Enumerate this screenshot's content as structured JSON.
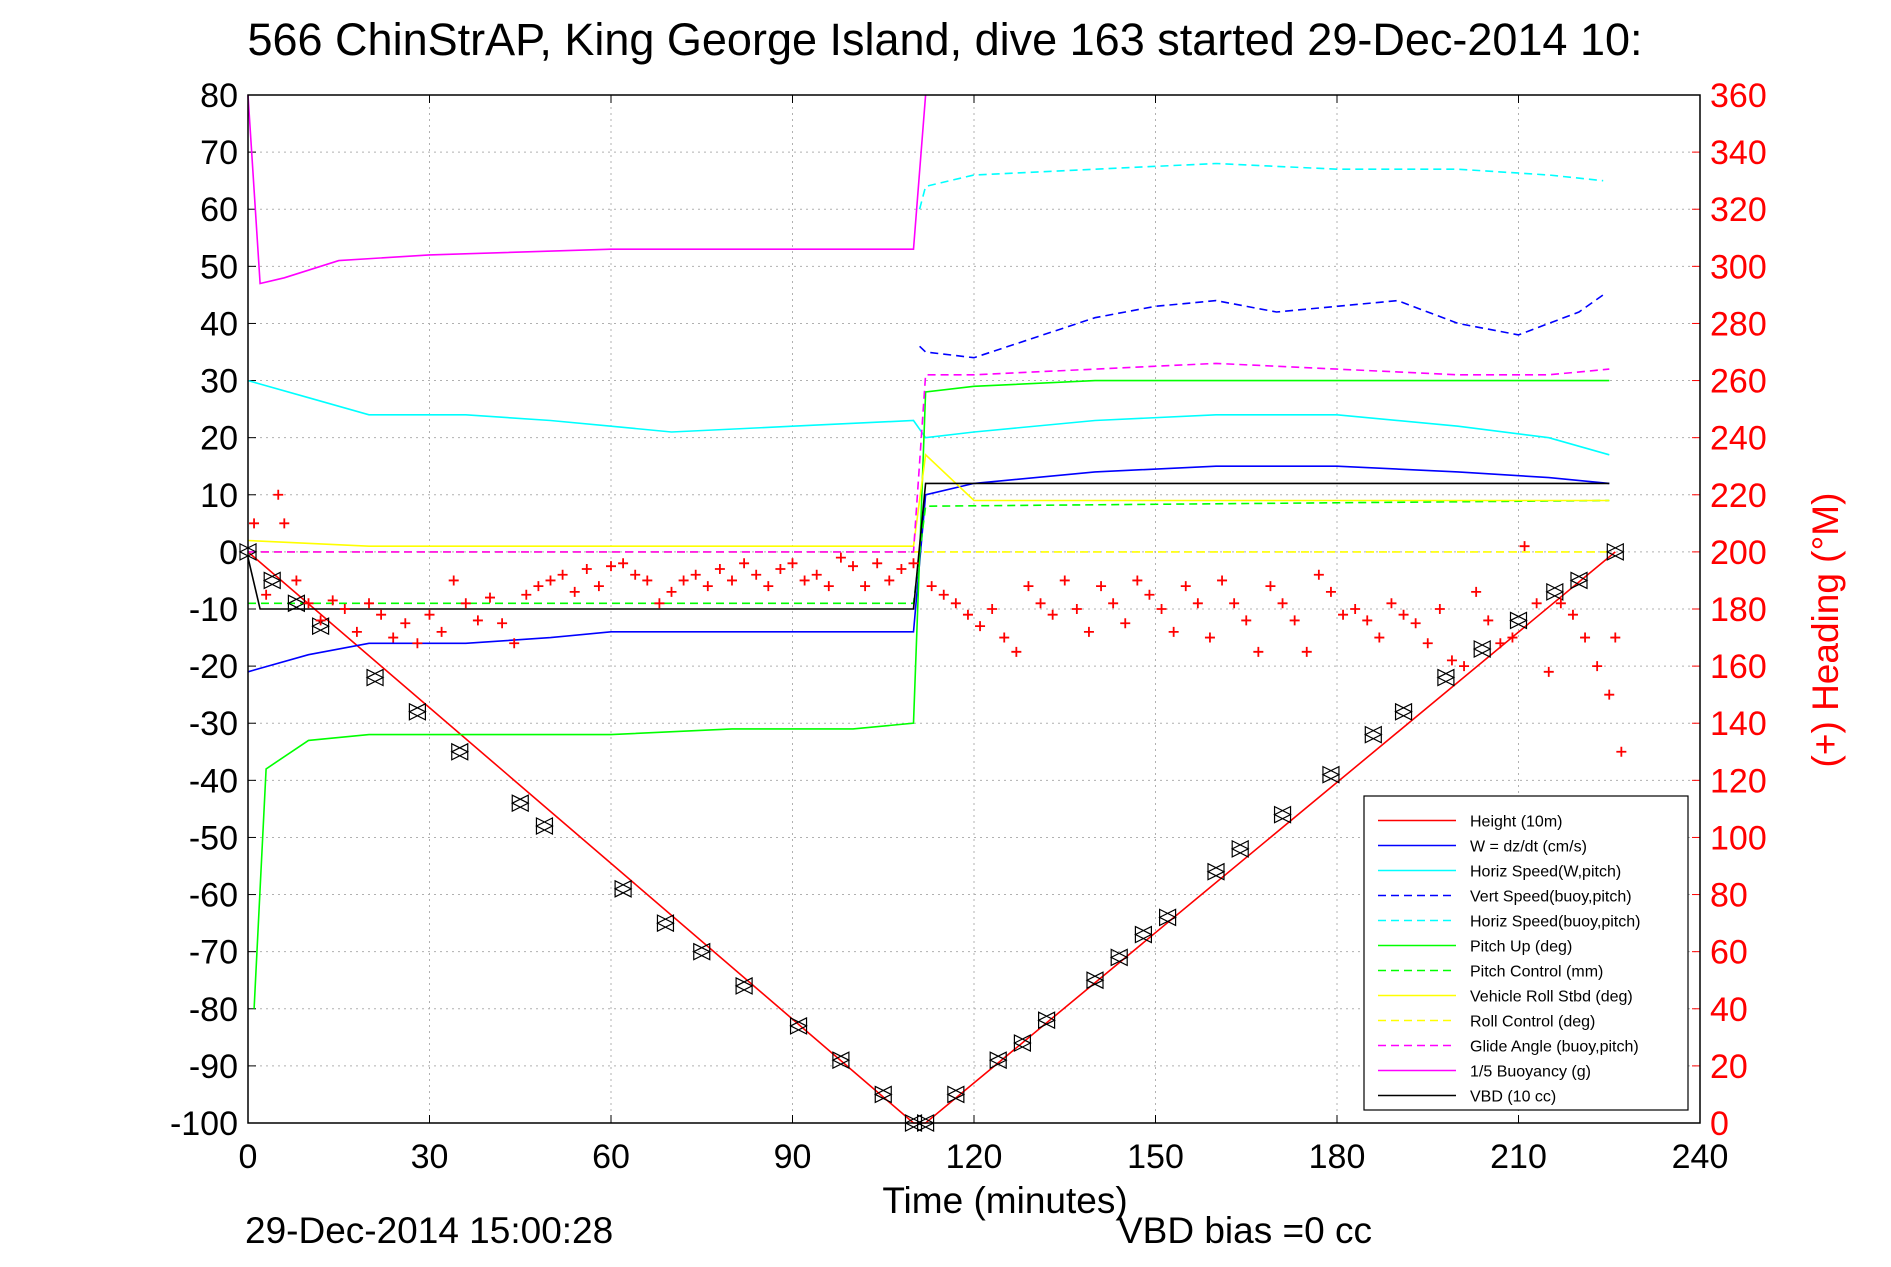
{
  "figure": {
    "title": "566 ChinStrAP, King George Island, dive 163 started 29-Dec-2014 10:",
    "timestamp": "29-Dec-2014 15:00:28",
    "vbd_bias": "VBD bias =0 cc"
  },
  "chart_data": {
    "type": "line",
    "title": "566 ChinStrAP, King George Island, dive 163 started 29-Dec-2014 10:",
    "xlabel": "Time (minutes)",
    "ylabel": "",
    "y2label": "(+) Heading (°M)",
    "xlim": [
      0,
      240
    ],
    "ylim": [
      -100,
      80
    ],
    "y2lim": [
      0,
      360
    ],
    "xticks": [
      "0",
      "30",
      "60",
      "90",
      "120",
      "150",
      "180",
      "210",
      "240"
    ],
    "yticks": [
      "80",
      "70",
      "60",
      "50",
      "40",
      "30",
      "20",
      "10",
      "0",
      "-10",
      "-20",
      "-30",
      "-40",
      "-50",
      "-60",
      "-70",
      "-80",
      "-90",
      "-100"
    ],
    "y2ticks": [
      "360",
      "340",
      "320",
      "300",
      "280",
      "260",
      "240",
      "220",
      "200",
      "180",
      "160",
      "140",
      "120",
      "100",
      "80",
      "60",
      "40",
      "20",
      "0"
    ],
    "grid": true,
    "legend_position": "bottom-right",
    "colors": {
      "red": "#ff0000",
      "blue": "#0000ff",
      "cyan": "#00ffff",
      "green": "#00ff00",
      "yellow": "#ffff00",
      "magenta": "#ff00ff",
      "black": "#000000"
    },
    "series": [
      {
        "name": "Height (10m)",
        "color": "#ff0000",
        "dash": "solid",
        "x": [
          0,
          110,
          112,
          226
        ],
        "y": [
          0,
          -100,
          -100,
          0
        ]
      },
      {
        "name": "W = dz/dt (cm/s)",
        "color": "#0000ff",
        "dash": "solid",
        "x": [
          0,
          10,
          20,
          36,
          50,
          60,
          80,
          100,
          110,
          112,
          120,
          140,
          160,
          180,
          200,
          215,
          225
        ],
        "y": [
          -21,
          -18,
          -16,
          -16,
          -15,
          -14,
          -14,
          -14,
          -14,
          10,
          12,
          14,
          15,
          15,
          14,
          13,
          12
        ]
      },
      {
        "name": "Horiz Speed(W,pitch)",
        "color": "#00ffff",
        "dash": "solid",
        "x": [
          0,
          10,
          20,
          36,
          50,
          60,
          70,
          90,
          110,
          112,
          120,
          140,
          160,
          180,
          200,
          215,
          225
        ],
        "y": [
          30,
          27,
          24,
          24,
          23,
          22,
          21,
          22,
          23,
          20,
          21,
          23,
          24,
          24,
          22,
          20,
          17
        ]
      },
      {
        "name": "Vert Speed(buoy,pitch)",
        "color": "#0000ff",
        "dash": "dashed",
        "x": [
          111,
          112,
          120,
          140,
          150,
          160,
          170,
          190,
          200,
          210,
          220,
          224
        ],
        "y": [
          36,
          35,
          34,
          41,
          43,
          44,
          42,
          44,
          40,
          38,
          42,
          45
        ]
      },
      {
        "name": "Horiz Speed(buoy,pitch)",
        "color": "#00ffff",
        "dash": "dashed",
        "x": [
          111,
          112,
          120,
          140,
          160,
          180,
          200,
          215,
          224
        ],
        "y": [
          60,
          64,
          66,
          67,
          68,
          67,
          67,
          66,
          65
        ]
      },
      {
        "name": "Pitch Up (deg)",
        "color": "#00ff00",
        "dash": "solid",
        "x": [
          1,
          3,
          10,
          20,
          40,
          60,
          80,
          100,
          110,
          112,
          120,
          140,
          160,
          180,
          200,
          215,
          225
        ],
        "y": [
          -80,
          -38,
          -33,
          -32,
          -32,
          -32,
          -31,
          -31,
          -30,
          28,
          29,
          30,
          30,
          30,
          30,
          30,
          30
        ]
      },
      {
        "name": "Pitch Control (mm)",
        "color": "#00ff00",
        "dash": "dashed",
        "x": [
          0,
          110,
          112,
          225
        ],
        "y": [
          -9,
          -9,
          8,
          9
        ]
      },
      {
        "name": "Vehicle Roll Stbd (deg)",
        "color": "#ffff00",
        "dash": "solid",
        "x": [
          0,
          20,
          40,
          60,
          80,
          100,
          110,
          112,
          120,
          140,
          160,
          180,
          200,
          215,
          225
        ],
        "y": [
          2,
          1,
          1,
          1,
          1,
          1,
          1,
          17,
          9,
          9,
          9,
          9,
          9,
          9,
          9
        ]
      },
      {
        "name": "Roll Control (deg)",
        "color": "#ffff00",
        "dash": "dashed",
        "x": [
          0,
          110,
          112,
          225
        ],
        "y": [
          0,
          0,
          0,
          0
        ]
      },
      {
        "name": "Glide Angle (buoy,pitch)",
        "color": "#ff00ff",
        "dash": "dashed",
        "x": [
          0,
          110,
          112,
          120,
          140,
          160,
          180,
          200,
          215,
          225
        ],
        "y": [
          0,
          0,
          31,
          31,
          32,
          33,
          32,
          31,
          31,
          32
        ]
      },
      {
        "name": "1/5 Buoyancy (g)",
        "color": "#ff00ff",
        "dash": "solid",
        "x": [
          0,
          2,
          6,
          15,
          30,
          60,
          90,
          110,
          112
        ],
        "y": [
          80,
          47,
          48,
          51,
          52,
          53,
          53,
          53,
          80
        ]
      },
      {
        "name": "VBD (10 cc)",
        "color": "#000000",
        "dash": "solid",
        "x": [
          0,
          2,
          10,
          110,
          112,
          225
        ],
        "y": [
          -1,
          -10,
          -10,
          -10,
          12,
          12
        ]
      }
    ],
    "heading_points": {
      "name": "(+) Heading (°M)",
      "color": "#ff0000",
      "x": [
        1,
        3,
        5,
        6,
        8,
        10,
        12,
        14,
        16,
        18,
        20,
        22,
        24,
        26,
        28,
        30,
        32,
        34,
        36,
        38,
        40,
        42,
        44,
        46,
        48,
        50,
        52,
        54,
        56,
        58,
        60,
        62,
        64,
        66,
        68,
        70,
        72,
        74,
        76,
        78,
        80,
        82,
        84,
        86,
        88,
        90,
        92,
        94,
        96,
        98,
        100,
        102,
        104,
        106,
        108,
        110,
        113,
        115,
        117,
        119,
        121,
        123,
        125,
        127,
        129,
        131,
        133,
        135,
        137,
        139,
        141,
        143,
        145,
        147,
        149,
        151,
        153,
        155,
        157,
        159,
        161,
        163,
        165,
        167,
        169,
        171,
        173,
        175,
        177,
        179,
        181,
        183,
        185,
        187,
        189,
        191,
        193,
        195,
        197,
        199,
        201,
        203,
        205,
        207,
        209,
        211,
        213,
        215,
        217,
        219,
        221,
        223,
        225,
        226,
        227
      ],
      "y": [
        210,
        185,
        220,
        210,
        190,
        182,
        176,
        183,
        180,
        172,
        182,
        178,
        170,
        175,
        168,
        178,
        172,
        190,
        182,
        176,
        184,
        175,
        168,
        185,
        188,
        190,
        192,
        186,
        194,
        188,
        195,
        196,
        192,
        190,
        182,
        186,
        190,
        192,
        188,
        194,
        190,
        196,
        192,
        188,
        194,
        196,
        190,
        192,
        188,
        198,
        195,
        188,
        196,
        190,
        194,
        196,
        188,
        185,
        182,
        178,
        174,
        180,
        170,
        165,
        188,
        182,
        178,
        190,
        180,
        172,
        188,
        182,
        175,
        190,
        185,
        180,
        172,
        188,
        182,
        170,
        190,
        182,
        176,
        165,
        188,
        182,
        176,
        165,
        192,
        186,
        178,
        180,
        176,
        170,
        182,
        178,
        175,
        168,
        180,
        162,
        160,
        186,
        176,
        168,
        170,
        202,
        182,
        158,
        182,
        178,
        170,
        160,
        150,
        170,
        130
      ]
    },
    "height_markers": {
      "x": [
        0,
        4,
        8,
        12,
        21,
        28,
        35,
        45,
        49,
        62,
        69,
        75,
        82,
        91,
        98,
        105,
        110,
        112,
        117,
        124,
        128,
        132,
        140,
        144,
        148,
        152,
        160,
        164,
        171,
        179,
        186,
        191,
        198,
        204,
        210,
        216,
        220,
        226
      ],
      "y": [
        0,
        -5,
        -9,
        -13,
        -22,
        -28,
        -35,
        -44,
        -48,
        -59,
        -65,
        -70,
        -76,
        -83,
        -89,
        -95,
        -100,
        -100,
        -95,
        -89,
        -86,
        -82,
        -75,
        -71,
        -67,
        -64,
        -56,
        -52,
        -46,
        -39,
        -32,
        -28,
        -22,
        -17,
        -12,
        -7,
        -5,
        0
      ]
    }
  }
}
